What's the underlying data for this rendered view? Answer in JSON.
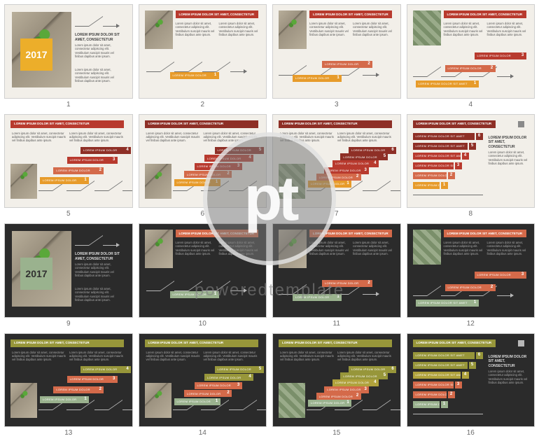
{
  "watermark": {
    "logo": "pt",
    "text": "poweredtemplate"
  },
  "palette": {
    "light_bg": "#f2efe9",
    "dark_bg": "#2b2b2b",
    "orange": "#e79b2a",
    "gold": "#e8a83a",
    "red": "#b83a2e",
    "darkred": "#8e2f26",
    "coral": "#d46a4a",
    "olive": "#97963a",
    "olive2": "#b0a23c",
    "sage": "#9ab28e",
    "sage2": "#7a9a7a",
    "gray": "#8a8a8a",
    "year_light": "#ecae2a",
    "year_dark": "#9ab28e"
  },
  "common": {
    "year": "2017",
    "lorem_title": "LOREM IPSUM DOLOR SIT AMET, CONSECTETUR",
    "lorem_short": "LOREM IPSUM DOLOR",
    "lorem_med": "LOREM IPSUM DOLOR SIT AMET",
    "lorem_para": "Lorem ipsum dolor sit amet, consectetur adipiscing elit. Vestibulum suscipit mauris vel finibus dapibus ante ipsum."
  },
  "slides": [
    {
      "n": 1,
      "theme": "light",
      "layout": "year_intro",
      "year_bg": "#ecae2a",
      "year_color": "#ffffff",
      "photo": "plant"
    },
    {
      "n": 2,
      "theme": "light",
      "layout": "step_right",
      "photo": "plant",
      "bars": [
        {
          "color": "#e79b2a",
          "num": "1",
          "w": 60
        }
      ],
      "head_color": "#b83a2e"
    },
    {
      "n": 3,
      "theme": "light",
      "layout": "step_middle",
      "photo": "plant",
      "bars": [
        {
          "color": "#d46a4a",
          "num": "2",
          "w": 62
        },
        {
          "color": "#e79b2a",
          "num": "1",
          "w": 60
        }
      ],
      "head_color": "#b83a2e"
    },
    {
      "n": 4,
      "theme": "light",
      "layout": "step_wide",
      "photo": "money",
      "bars": [
        {
          "color": "#b83a2e",
          "num": "3",
          "w": 64
        },
        {
          "color": "#d46a4a",
          "num": "2",
          "w": 62
        },
        {
          "color": "#e79b2a",
          "num": "1",
          "w": 80
        }
      ],
      "head_color": "#b83a2e"
    },
    {
      "n": 5,
      "theme": "light",
      "layout": "step_low",
      "photo": "plant",
      "bars": [
        {
          "color": "#8e2f26",
          "num": "4",
          "w": 62
        },
        {
          "color": "#b83a2e",
          "num": "3",
          "w": 62
        },
        {
          "color": "#d46a4a",
          "num": "2",
          "w": 62
        },
        {
          "color": "#e79b2a",
          "num": "1",
          "w": 60
        }
      ],
      "head_color": "#b83a2e"
    },
    {
      "n": 6,
      "theme": "light",
      "layout": "step_low5",
      "photo": "plant",
      "bars": [
        {
          "color": "#8e2f26",
          "num": "5",
          "w": 60
        },
        {
          "color": "#b83a2e",
          "num": "4",
          "w": 60
        },
        {
          "color": "#b83a2e",
          "num": "3",
          "w": 58
        },
        {
          "color": "#d46a4a",
          "num": "2",
          "w": 58
        },
        {
          "color": "#e79b2a",
          "num": "1",
          "w": 56
        }
      ],
      "head_color": "#8e2f26"
    },
    {
      "n": 7,
      "theme": "light",
      "layout": "step_low6",
      "photo": "money",
      "bars": [
        {
          "color": "#8e2f26",
          "num": "6",
          "w": 58
        },
        {
          "color": "#8e2f26",
          "num": "5",
          "w": 58
        },
        {
          "color": "#b83a2e",
          "num": "4",
          "w": 56
        },
        {
          "color": "#b83a2e",
          "num": "3",
          "w": 54
        },
        {
          "color": "#d46a4a",
          "num": "2",
          "w": 54
        },
        {
          "color": "#e79b2a",
          "num": "1",
          "w": 52
        }
      ],
      "head_color": "#8e2f26"
    },
    {
      "n": 8,
      "theme": "light",
      "layout": "hbar_stack",
      "photo": null,
      "endcap": "#8a8a8a",
      "rows": [
        {
          "color": "#8e2f26",
          "num": "6",
          "w": 88
        },
        {
          "color": "#8e2f26",
          "num": "5",
          "w": 78
        },
        {
          "color": "#b83a2e",
          "num": "4",
          "w": 68
        },
        {
          "color": "#b83a2e",
          "num": "3",
          "w": 58
        },
        {
          "color": "#d46a4a",
          "num": "2",
          "w": 48
        },
        {
          "color": "#e79b2a",
          "num": "1",
          "w": 38
        }
      ],
      "head_color": "#8e2f26"
    },
    {
      "n": 9,
      "theme": "dark",
      "layout": "year_intro",
      "year_bg": "#9ab28e",
      "year_color": "#303030",
      "photo": "plant"
    },
    {
      "n": 10,
      "theme": "dark",
      "layout": "step_right",
      "photo": "plant",
      "bars": [
        {
          "color": "#9ab28e",
          "num": "1",
          "w": 60
        }
      ],
      "head_color": "#d46a4a"
    },
    {
      "n": 11,
      "theme": "dark",
      "layout": "step_middle",
      "photo": "plant",
      "bars": [
        {
          "color": "#d46a4a",
          "num": "2",
          "w": 62
        },
        {
          "color": "#9ab28e",
          "num": "1",
          "w": 60
        }
      ],
      "head_color": "#d46a4a"
    },
    {
      "n": 12,
      "theme": "dark",
      "layout": "step_wide",
      "photo": "money",
      "bars": [
        {
          "color": "#d46a4a",
          "num": "3",
          "w": 64
        },
        {
          "color": "#d46a4a",
          "num": "2",
          "w": 62
        },
        {
          "color": "#9ab28e",
          "num": "1",
          "w": 80
        }
      ],
      "head_color": "#d46a4a"
    },
    {
      "n": 13,
      "theme": "dark",
      "layout": "step_low",
      "photo": "plant",
      "bars": [
        {
          "color": "#97963a",
          "num": "4",
          "w": 62
        },
        {
          "color": "#d46a4a",
          "num": "3",
          "w": 62
        },
        {
          "color": "#d46a4a",
          "num": "2",
          "w": 62
        },
        {
          "color": "#9ab28e",
          "num": "1",
          "w": 60
        }
      ],
      "head_color": "#97963a"
    },
    {
      "n": 14,
      "theme": "dark",
      "layout": "step_low5",
      "photo": "plant",
      "bars": [
        {
          "color": "#97963a",
          "num": "5",
          "w": 60
        },
        {
          "color": "#97963a",
          "num": "4",
          "w": 60
        },
        {
          "color": "#d46a4a",
          "num": "3",
          "w": 58
        },
        {
          "color": "#d46a4a",
          "num": "2",
          "w": 58
        },
        {
          "color": "#9ab28e",
          "num": "1",
          "w": 56
        }
      ],
      "head_color": "#97963a"
    },
    {
      "n": 15,
      "theme": "dark",
      "layout": "step_low6",
      "photo": "money",
      "bars": [
        {
          "color": "#97963a",
          "num": "6",
          "w": 58
        },
        {
          "color": "#97963a",
          "num": "5",
          "w": 58
        },
        {
          "color": "#b0a23c",
          "num": "4",
          "w": 56
        },
        {
          "color": "#d46a4a",
          "num": "3",
          "w": 54
        },
        {
          "color": "#d46a4a",
          "num": "2",
          "w": 54
        },
        {
          "color": "#9ab28e",
          "num": "1",
          "w": 52
        }
      ],
      "head_color": "#97963a"
    },
    {
      "n": 16,
      "theme": "dark",
      "layout": "hbar_stack",
      "photo": null,
      "endcap": "#b8b8b8",
      "rows": [
        {
          "color": "#97963a",
          "num": "6",
          "w": 88
        },
        {
          "color": "#97963a",
          "num": "5",
          "w": 78
        },
        {
          "color": "#b0a23c",
          "num": "4",
          "w": 68
        },
        {
          "color": "#d46a4a",
          "num": "3",
          "w": 58
        },
        {
          "color": "#d46a4a",
          "num": "2",
          "w": 48
        },
        {
          "color": "#9ab28e",
          "num": "1",
          "w": 38
        }
      ],
      "head_color": "#97963a"
    }
  ]
}
